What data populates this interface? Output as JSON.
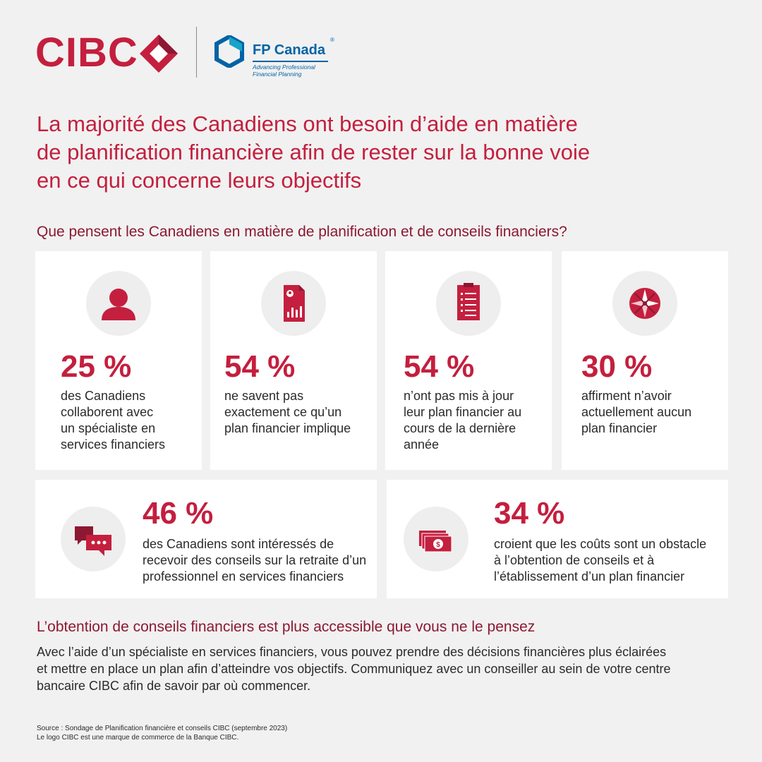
{
  "brand": {
    "cibc_name": "CIBC",
    "fp_name": "FP Canada",
    "fp_reg": "®",
    "fp_tagline_1": "Advancing Professional",
    "fp_tagline_2": "Financial Planning",
    "colors": {
      "cibc_red": "#c41f3e",
      "dark_red": "#8c1832",
      "fp_blue": "#0063a6",
      "fp_teal": "#18a3c9"
    }
  },
  "title_line1": "La majorité des Canadiens ont besoin d’aide en matière",
  "title_line2": "de planification financière afin de rester sur la bonne voie",
  "title_line3": "en ce qui concerne leurs objectifs",
  "subtitle": "Que pensent les Canadiens en matière de planification et de conseils financiers?",
  "stats": [
    {
      "icon": "person-icon",
      "pct": "25 %",
      "lines": [
        "des Canadiens",
        "collaborent avec",
        "un spécialiste en",
        "services financiers"
      ]
    },
    {
      "icon": "financial-document-icon",
      "pct": "54 %",
      "lines": [
        "ne savent pas",
        "exactement ce qu’un",
        "plan financier implique"
      ]
    },
    {
      "icon": "clipboard-checklist-icon",
      "pct": "54 %",
      "lines": [
        "n’ont pas mis à jour",
        "leur plan financier au",
        "cours de la dernière",
        "année"
      ]
    },
    {
      "icon": "compass-icon",
      "pct": "30 %",
      "lines": [
        "affirment n’avoir",
        "actuellement aucun",
        "plan financier"
      ]
    },
    {
      "icon": "chat-bubbles-icon",
      "pct": "46 %",
      "lines": [
        "des Canadiens sont intéressés de",
        "recevoir des conseils sur la retraite d’un",
        "professionnel en services financiers"
      ]
    },
    {
      "icon": "money-bills-icon",
      "pct": "34 %",
      "lines": [
        "croient que les coûts sont un obstacle",
        "à l’obtention de conseils et à",
        "l’établissement d’un plan financier"
      ]
    }
  ],
  "section_title": "L’obtention de conseils financiers est plus accessible que vous ne le pensez",
  "body_line1": "Avec l’aide d’un spécialiste en services financiers, vous pouvez prendre des décisions financières plus éclairées",
  "body_line2": "et mettre en place un plan afin d’atteindre vos objectifs. Communiquez avec un conseiller au sein de votre centre",
  "body_line3": "bancaire CIBC afin de savoir par où commencer.",
  "footer_line1": "Source : Sondage de Planification financière et conseils CIBC (septembre 2023)",
  "footer_line2": "Le logo CIBC est une marque de commerce de la Banque CIBC."
}
